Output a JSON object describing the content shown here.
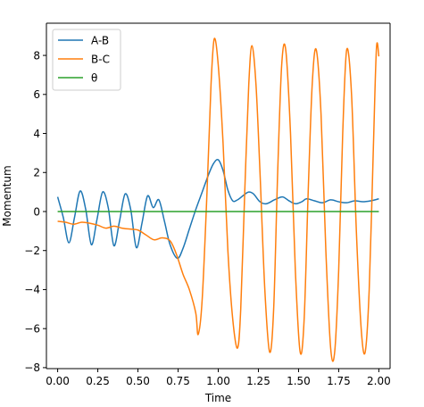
{
  "chart_data": {
    "type": "line",
    "title": "",
    "xlabel": "Time",
    "ylabel": "Momentum",
    "xlim": [
      -0.07,
      2.07
    ],
    "ylim": [
      -8.05,
      9.65
    ],
    "xticks": [
      0.0,
      0.25,
      0.5,
      0.75,
      1.0,
      1.25,
      1.5,
      1.75,
      2.0
    ],
    "xtick_labels": [
      "0.00",
      "0.25",
      "0.50",
      "0.75",
      "1.00",
      "1.25",
      "1.50",
      "1.75",
      "2.00"
    ],
    "yticks": [
      -8,
      -6,
      -4,
      -2,
      0,
      2,
      4,
      6,
      8
    ],
    "ytick_labels": [
      "−8",
      "−6",
      "−4",
      "−2",
      "0",
      "2",
      "4",
      "6",
      "8"
    ],
    "grid": false,
    "legend_position": "top-left",
    "series": [
      {
        "name": "A-B",
        "color": "#1f77b4",
        "x": [
          0.0,
          0.035,
          0.07,
          0.105,
          0.14,
          0.175,
          0.21,
          0.245,
          0.28,
          0.315,
          0.35,
          0.385,
          0.42,
          0.455,
          0.49,
          0.525,
          0.56,
          0.595,
          0.63,
          0.665,
          0.7,
          0.745,
          0.78,
          0.82,
          0.86,
          0.9,
          0.94,
          0.97,
          1.0,
          1.03,
          1.06,
          1.09,
          1.12,
          1.16,
          1.19,
          1.22,
          1.26,
          1.3,
          1.35,
          1.4,
          1.44,
          1.48,
          1.52,
          1.55,
          1.6,
          1.65,
          1.7,
          1.75,
          1.8,
          1.85,
          1.9,
          1.95,
          2.0
        ],
        "y": [
          0.75,
          -0.3,
          -1.6,
          -0.3,
          1.05,
          0.1,
          -1.7,
          -0.4,
          1.0,
          0.2,
          -1.75,
          -0.5,
          0.9,
          0.1,
          -1.85,
          -0.6,
          0.8,
          0.2,
          0.6,
          -0.5,
          -1.7,
          -2.4,
          -1.9,
          -0.9,
          0.1,
          1.0,
          1.9,
          2.45,
          2.65,
          2.1,
          1.1,
          0.55,
          0.6,
          0.85,
          1.0,
          0.9,
          0.5,
          0.4,
          0.6,
          0.75,
          0.55,
          0.4,
          0.5,
          0.65,
          0.55,
          0.45,
          0.6,
          0.5,
          0.45,
          0.55,
          0.5,
          0.55,
          0.65
        ]
      },
      {
        "name": "B-C",
        "color": "#ff7f0e",
        "x": [
          0.0,
          0.05,
          0.1,
          0.15,
          0.2,
          0.25,
          0.3,
          0.35,
          0.4,
          0.45,
          0.5,
          0.55,
          0.6,
          0.65,
          0.7,
          0.74,
          0.78,
          0.82,
          0.86,
          0.875,
          0.9,
          0.93,
          0.955,
          0.975,
          1.0,
          1.03,
          1.06,
          1.09,
          1.12,
          1.14,
          1.165,
          1.19,
          1.21,
          1.235,
          1.26,
          1.29,
          1.32,
          1.345,
          1.37,
          1.395,
          1.42,
          1.45,
          1.48,
          1.51,
          1.535,
          1.56,
          1.585,
          1.61,
          1.64,
          1.67,
          1.7,
          1.725,
          1.75,
          1.775,
          1.8,
          1.83,
          1.86,
          1.89,
          1.915,
          1.94,
          1.965,
          1.985,
          2.0
        ],
        "y": [
          -0.5,
          -0.55,
          -0.65,
          -0.55,
          -0.6,
          -0.7,
          -0.85,
          -0.75,
          -0.85,
          -0.9,
          -0.95,
          -1.2,
          -1.45,
          -1.35,
          -1.5,
          -2.2,
          -3.2,
          -4.0,
          -5.2,
          -6.3,
          -4.5,
          1.0,
          6.5,
          8.85,
          7.5,
          3.5,
          -2.0,
          -5.5,
          -7.0,
          -5.0,
          1.0,
          6.5,
          8.5,
          6.5,
          2.0,
          -4.0,
          -7.2,
          -5.0,
          2.0,
          7.5,
          8.3,
          4.0,
          -3.0,
          -7.2,
          -5.5,
          1.0,
          6.5,
          8.3,
          5.0,
          -2.0,
          -7.0,
          -7.2,
          -3.0,
          4.0,
          8.3,
          6.0,
          -1.0,
          -6.0,
          -7.2,
          -4.0,
          3.0,
          8.35,
          7.95
        ]
      },
      {
        "name": "θ",
        "color": "#2ca02c",
        "x": [
          0.0,
          2.0
        ],
        "y": [
          0.0,
          0.0
        ]
      }
    ]
  }
}
